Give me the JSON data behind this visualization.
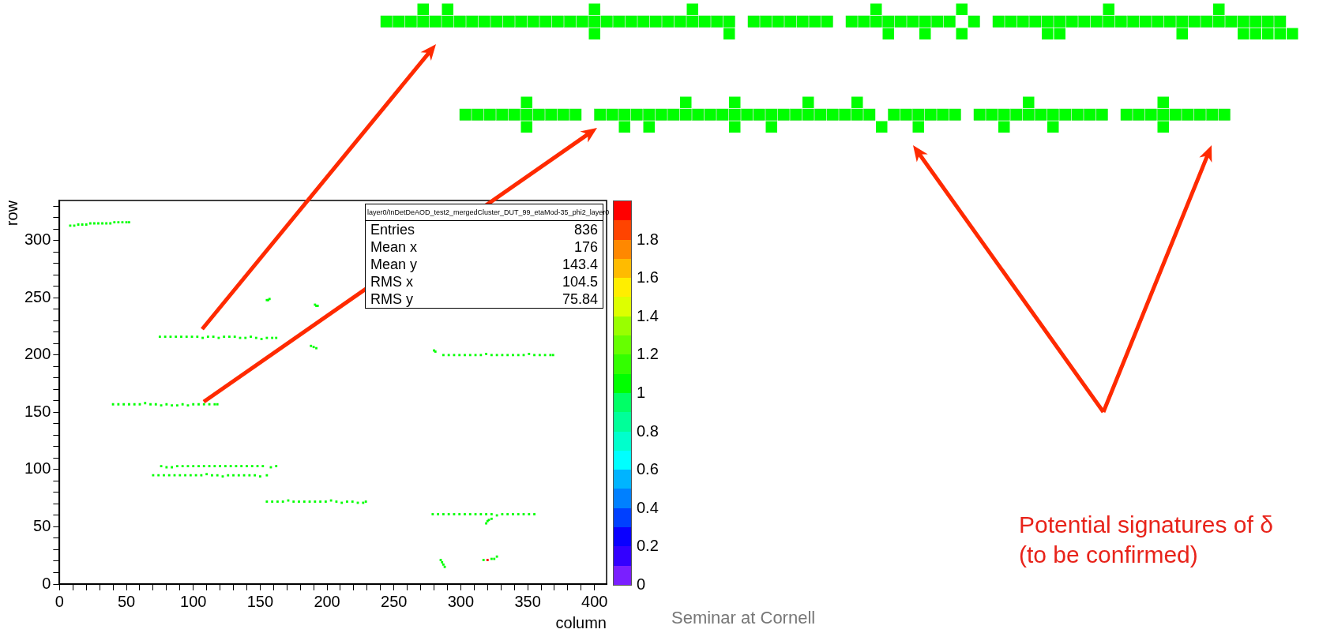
{
  "chart_data": {
    "type": "scatter",
    "xlabel": "column",
    "ylabel": "row",
    "xlim": [
      0,
      409
    ],
    "ylim": [
      0,
      335
    ],
    "xticks": [
      0,
      {
        "value": 10,
        "label": null
      },
      {
        "value": 20,
        "label": null
      },
      {
        "value": 30,
        "label": null
      },
      {
        "value": 40,
        "label": null
      },
      50,
      {
        "value": 60,
        "label": null
      },
      {
        "value": 70,
        "label": null
      },
      {
        "value": 80,
        "label": null
      },
      {
        "value": 90,
        "label": null
      },
      100,
      {
        "value": 110,
        "label": null
      },
      {
        "value": 120,
        "label": null
      },
      {
        "value": 130,
        "label": null
      },
      {
        "value": 140,
        "label": null
      },
      150,
      {
        "value": 160,
        "label": null
      },
      {
        "value": 170,
        "label": null
      },
      {
        "value": 180,
        "label": null
      },
      {
        "value": 190,
        "label": null
      },
      200,
      {
        "value": 210,
        "label": null
      },
      {
        "value": 220,
        "label": null
      },
      {
        "value": 230,
        "label": null
      },
      {
        "value": 240,
        "label": null
      },
      250,
      {
        "value": 260,
        "label": null
      },
      {
        "value": 270,
        "label": null
      },
      {
        "value": 280,
        "label": null
      },
      {
        "value": 290,
        "label": null
      },
      300,
      {
        "value": 310,
        "label": null
      },
      {
        "value": 320,
        "label": null
      },
      {
        "value": 330,
        "label": null
      },
      {
        "value": 340,
        "label": null
      },
      350,
      {
        "value": 360,
        "label": null
      },
      {
        "value": 370,
        "label": null
      },
      {
        "value": 380,
        "label": null
      },
      {
        "value": 390,
        "label": null
      },
      400
    ],
    "yticks": [
      0,
      {
        "value": 10,
        "label": null
      },
      {
        "value": 20,
        "label": null
      },
      {
        "value": 30,
        "label": null
      },
      {
        "value": 40,
        "label": null
      },
      50,
      {
        "value": 60,
        "label": null
      },
      {
        "value": 70,
        "label": null
      },
      {
        "value": 80,
        "label": null
      },
      {
        "value": 90,
        "label": null
      },
      100,
      {
        "value": 110,
        "label": null
      },
      {
        "value": 120,
        "label": null
      },
      {
        "value": 130,
        "label": null
      },
      {
        "value": 140,
        "label": null
      },
      150,
      {
        "value": 160,
        "label": null
      },
      {
        "value": 170,
        "label": null
      },
      {
        "value": 180,
        "label": null
      },
      {
        "value": 190,
        "label": null
      },
      200,
      {
        "value": 210,
        "label": null
      },
      {
        "value": 220,
        "label": null
      },
      {
        "value": 230,
        "label": null
      },
      {
        "value": 240,
        "label": null
      },
      250,
      {
        "value": 260,
        "label": null
      },
      {
        "value": 270,
        "label": null
      },
      {
        "value": 280,
        "label": null
      },
      {
        "value": 290,
        "label": null
      },
      300,
      {
        "value": 310,
        "label": null
      },
      {
        "value": 320,
        "label": null
      },
      {
        "value": 330,
        "label": null
      }
    ],
    "clim": [
      0,
      2
    ],
    "cticks": [
      0,
      0.2,
      0.4,
      0.6,
      0.8,
      1,
      1.2,
      1.4,
      1.6,
      1.8
    ],
    "marker": "square",
    "legend": false,
    "grid": false,
    "series": [
      {
        "x": [
          8,
          11,
          14,
          17,
          20,
          23,
          26,
          29,
          32,
          35,
          38,
          41,
          44,
          47,
          50,
          52,
          75,
          79,
          83,
          87,
          91,
          95,
          99,
          103,
          107,
          111,
          115,
          119,
          123,
          127,
          131,
          135,
          139,
          143,
          147,
          151,
          155,
          159,
          162,
          40,
          44,
          48,
          52,
          56,
          60,
          64,
          68,
          72,
          76,
          80,
          84,
          88,
          92,
          96,
          100,
          104,
          108,
          112,
          116,
          118,
          76,
          80,
          84,
          88,
          92,
          96,
          100,
          104,
          108,
          112,
          116,
          120,
          124,
          128,
          132,
          136,
          140,
          144,
          148,
          152,
          158,
          162,
          70,
          74,
          78,
          82,
          86,
          90,
          94,
          98,
          102,
          106,
          110,
          114,
          118,
          122,
          126,
          130,
          134,
          138,
          142,
          146,
          150,
          155,
          155,
          159,
          163,
          167,
          171,
          175,
          179,
          183,
          187,
          191,
          195,
          199,
          203,
          207,
          211,
          215,
          219,
          223,
          227,
          229,
          280,
          281,
          287,
          291,
          295,
          299,
          303,
          307,
          311,
          315,
          319,
          323,
          327,
          331,
          335,
          339,
          343,
          347,
          351,
          355,
          359,
          363,
          367,
          369,
          279,
          283,
          287,
          291,
          295,
          299,
          303,
          307,
          311,
          315,
          319,
          323,
          327,
          331,
          335,
          339,
          343,
          347,
          351,
          355,
          155,
          156,
          157,
          191,
          192,
          193,
          188,
          190,
          192,
          319,
          320,
          321,
          323,
          285,
          286,
          287,
          288,
          317,
          320,
          323,
          325,
          327
        ],
        "values": [
          313,
          313,
          314,
          314,
          314,
          315,
          315,
          315,
          315,
          315,
          315,
          316,
          316,
          316,
          316,
          316,
          216,
          216,
          216,
          216,
          216,
          216,
          216,
          216,
          215,
          216,
          216,
          215,
          216,
          216,
          216,
          215,
          215,
          216,
          215,
          214,
          215,
          215,
          215,
          157,
          157,
          157,
          157,
          157,
          157,
          158,
          157,
          157,
          156,
          157,
          156,
          156,
          157,
          156,
          157,
          157,
          157,
          157,
          157,
          157,
          103,
          102,
          102,
          103,
          103,
          103,
          103,
          103,
          103,
          103,
          103,
          103,
          103,
          103,
          103,
          103,
          103,
          103,
          103,
          103,
          102,
          103,
          95,
          95,
          95,
          95,
          95,
          95,
          95,
          95,
          95,
          95,
          96,
          95,
          95,
          94,
          95,
          95,
          95,
          95,
          95,
          95,
          94,
          95,
          72,
          72,
          72,
          72,
          73,
          72,
          72,
          72,
          72,
          72,
          72,
          72,
          73,
          72,
          71,
          72,
          72,
          71,
          71,
          72,
          204,
          203,
          200,
          200,
          200,
          200,
          200,
          200,
          200,
          200,
          201,
          200,
          200,
          200,
          200,
          200,
          200,
          200,
          201,
          200,
          200,
          200,
          200,
          200,
          61,
          61,
          61,
          61,
          61,
          61,
          61,
          61,
          61,
          61,
          61,
          61,
          60,
          61,
          61,
          61,
          61,
          61,
          61,
          61,
          248,
          248,
          249,
          244,
          243,
          243,
          208,
          207,
          206,
          53,
          55,
          56,
          57,
          21,
          19,
          17,
          15,
          21,
          21,
          22,
          22,
          24
        ],
        "cvalues": [
          1,
          1,
          1,
          1,
          1,
          1,
          1,
          1,
          1,
          1,
          1,
          1,
          1,
          1,
          1,
          1,
          1,
          1,
          1,
          1,
          1,
          1,
          1,
          1,
          1,
          1,
          1,
          1,
          1,
          1,
          1,
          1,
          1,
          1,
          1,
          1,
          1,
          1,
          1,
          1,
          1,
          1,
          1,
          1,
          1,
          1,
          1,
          1,
          1,
          1,
          1,
          1,
          1,
          1,
          1,
          1,
          1,
          1,
          1,
          1,
          1,
          1,
          1,
          1,
          1,
          1,
          1,
          1,
          1,
          1,
          1,
          1,
          1,
          1,
          1,
          1,
          1,
          1,
          1,
          1,
          1,
          1,
          1,
          1,
          1,
          1,
          1,
          1,
          1,
          1,
          1,
          1,
          1,
          1,
          1,
          1,
          1,
          1,
          1,
          1,
          1,
          1,
          1,
          1,
          1,
          1,
          1,
          1,
          1,
          1,
          1,
          1,
          1,
          1,
          1,
          1,
          1,
          1,
          1,
          1,
          1,
          1,
          1,
          1,
          1,
          1,
          1,
          1,
          1,
          1,
          1,
          1,
          1,
          1,
          1,
          1,
          1,
          1,
          1,
          1,
          1,
          1,
          1,
          1,
          1,
          1,
          1,
          1,
          1,
          1,
          1,
          1,
          1,
          1,
          1,
          1,
          1,
          1,
          1,
          1,
          1,
          1,
          1,
          1,
          1,
          1,
          1,
          1,
          1,
          1,
          1,
          1,
          1,
          1,
          1,
          1,
          1,
          1,
          1,
          1,
          1,
          1,
          1,
          1,
          1,
          1,
          2,
          1,
          1,
          1
        ]
      }
    ],
    "annotations": [
      "layer0/InDetDeAOD_test2_mergedCluster_DUT_99_etaMod-35_phi2_layer0",
      "Entries 836",
      "Mean x 176",
      "Mean y 143.4",
      "RMS x 104.5",
      "RMS y 75.84",
      "Potential signatures of δ",
      "(to be confirmed)",
      "Seminar at Cornell"
    ]
  }
}
